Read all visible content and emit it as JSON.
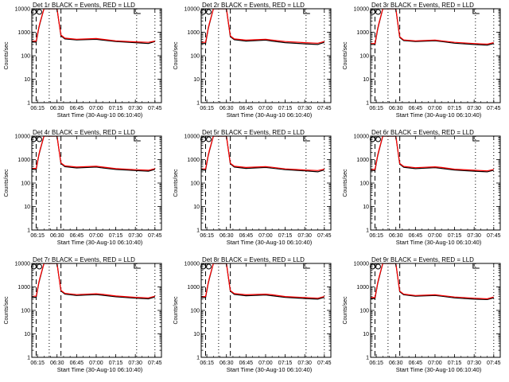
{
  "figure": {
    "x_tick_labels": [
      "06:15",
      "06:30",
      "06:45",
      "07:00",
      "07:15",
      "07:30",
      "07:45"
    ],
    "y_tick_labels": [
      "1",
      "10",
      "100",
      "1000",
      "10000"
    ],
    "colors": {
      "events": "#000000",
      "lld": "#ff0000"
    }
  },
  "chart_data": [
    {
      "type": "line",
      "title": "Det 1r BLACK = Events, RED = LLD",
      "xlabel": "Start Time (30-Aug-10 06:10:40)",
      "ylabel": "Counts/sec",
      "y_scale": "log",
      "ylim": [
        1,
        10000
      ],
      "x": [
        "06:10",
        "06:14",
        "06:16",
        "06:17",
        "06:20",
        "06:24",
        "06:28",
        "06:30",
        "06:33",
        "06:36",
        "06:45",
        "07:00",
        "07:05",
        "07:15",
        "07:30",
        "07:40",
        "07:45"
      ],
      "series": [
        {
          "name": "Events",
          "color": "#000000",
          "values": [
            380,
            380,
            1500,
            2500,
            10000,
            10000,
            10000,
            10000,
            700,
            520,
            470,
            500,
            460,
            400,
            360,
            330,
            400
          ]
        },
        {
          "name": "LLD",
          "color": "#ff0000",
          "values": [
            420,
            420,
            1600,
            2700,
            10000,
            10000,
            10000,
            10000,
            760,
            560,
            500,
            540,
            500,
            430,
            390,
            370,
            420
          ]
        }
      ],
      "vlines_dashed": [
        "06:14",
        "06:33"
      ],
      "vlines_dotted": [
        "06:24",
        "07:31",
        "07:45"
      ]
    },
    {
      "type": "line",
      "title": "Det 2r BLACK = Events, RED = LLD",
      "xlabel": "Start Time (30-Aug-10 06:10:40)",
      "ylabel": "Counts/sec",
      "y_scale": "log",
      "ylim": [
        1,
        10000
      ],
      "x": [
        "06:10",
        "06:14",
        "06:16",
        "06:17",
        "06:20",
        "06:24",
        "06:28",
        "06:30",
        "06:33",
        "06:36",
        "06:45",
        "07:00",
        "07:05",
        "07:15",
        "07:30",
        "07:40",
        "07:45"
      ],
      "series": [
        {
          "name": "Events",
          "color": "#000000",
          "values": [
            330,
            330,
            1400,
            2300,
            10000,
            10000,
            10000,
            10000,
            650,
            480,
            420,
            460,
            420,
            360,
            320,
            300,
            370
          ]
        },
        {
          "name": "LLD",
          "color": "#ff0000",
          "values": [
            370,
            370,
            1500,
            2500,
            10000,
            10000,
            10000,
            10000,
            700,
            520,
            460,
            500,
            460,
            400,
            360,
            340,
            400
          ]
        }
      ],
      "vlines_dashed": [
        "06:14",
        "06:33"
      ],
      "vlines_dotted": [
        "06:24",
        "07:31",
        "07:45"
      ]
    },
    {
      "type": "line",
      "title": "Det 3r BLACK = Events, RED = LLD",
      "xlabel": "Start Time (30-Aug-10 06:10:40)",
      "ylabel": "Counts/sec",
      "y_scale": "log",
      "ylim": [
        1,
        10000
      ],
      "x": [
        "06:10",
        "06:14",
        "06:16",
        "06:17",
        "06:20",
        "06:24",
        "06:28",
        "06:30",
        "06:33",
        "06:36",
        "06:45",
        "07:00",
        "07:05",
        "07:15",
        "07:30",
        "07:40",
        "07:45"
      ],
      "series": [
        {
          "name": "Events",
          "color": "#000000",
          "values": [
            300,
            300,
            1300,
            2200,
            10000,
            10000,
            10000,
            10000,
            600,
            440,
            400,
            430,
            400,
            340,
            300,
            280,
            330
          ]
        },
        {
          "name": "LLD",
          "color": "#ff0000",
          "values": [
            330,
            330,
            1400,
            2400,
            10000,
            10000,
            10000,
            10000,
            640,
            470,
            430,
            460,
            430,
            370,
            330,
            310,
            360
          ]
        }
      ],
      "vlines_dashed": [
        "06:14",
        "06:33"
      ],
      "vlines_dotted": [
        "06:24",
        "07:31",
        "07:45"
      ]
    },
    {
      "type": "line",
      "title": "Det 4r BLACK = Events, RED = LLD",
      "xlabel": "Start Time (30-Aug-10 06:10:40)",
      "ylabel": "Counts/sec",
      "y_scale": "log",
      "ylim": [
        1,
        10000
      ],
      "x": [
        "06:10",
        "06:14",
        "06:16",
        "06:17",
        "06:20",
        "06:24",
        "06:28",
        "06:30",
        "06:33",
        "06:36",
        "06:45",
        "07:00",
        "07:05",
        "07:15",
        "07:30",
        "07:40",
        "07:45"
      ],
      "series": [
        {
          "name": "Events",
          "color": "#000000",
          "values": [
            380,
            380,
            1500,
            2500,
            10000,
            10000,
            10000,
            10000,
            680,
            500,
            440,
            480,
            440,
            380,
            340,
            320,
            380
          ]
        },
        {
          "name": "LLD",
          "color": "#ff0000",
          "values": [
            420,
            420,
            1600,
            2700,
            10000,
            10000,
            10000,
            10000,
            720,
            540,
            480,
            520,
            480,
            410,
            370,
            350,
            410
          ]
        }
      ],
      "vlines_dashed": [
        "06:14",
        "06:33"
      ],
      "vlines_dotted": [
        "06:24",
        "07:31",
        "07:45"
      ]
    },
    {
      "type": "line",
      "title": "Det 5r BLACK = Events, RED = LLD",
      "xlabel": "Start Time (30-Aug-10 06:10:40)",
      "ylabel": "Counts/sec",
      "y_scale": "log",
      "ylim": [
        1,
        10000
      ],
      "x": [
        "06:10",
        "06:14",
        "06:16",
        "06:17",
        "06:20",
        "06:24",
        "06:28",
        "06:30",
        "06:33",
        "06:36",
        "06:45",
        "07:00",
        "07:05",
        "07:15",
        "07:30",
        "07:40",
        "07:45"
      ],
      "series": [
        {
          "name": "Events",
          "color": "#000000",
          "values": [
            360,
            360,
            1450,
            2400,
            10000,
            10000,
            10000,
            10000,
            660,
            480,
            420,
            460,
            430,
            370,
            330,
            300,
            360
          ]
        },
        {
          "name": "LLD",
          "color": "#ff0000",
          "values": [
            400,
            400,
            1550,
            2600,
            10000,
            10000,
            10000,
            10000,
            700,
            520,
            460,
            500,
            470,
            400,
            360,
            340,
            390
          ]
        }
      ],
      "vlines_dashed": [
        "06:14",
        "06:33"
      ],
      "vlines_dotted": [
        "06:24",
        "07:31",
        "07:45"
      ]
    },
    {
      "type": "line",
      "title": "Det 6r BLACK = Events, RED = LLD",
      "xlabel": "Start Time (30-Aug-10 06:10:40)",
      "ylabel": "Counts/sec",
      "y_scale": "log",
      "ylim": [
        1,
        10000
      ],
      "x": [
        "06:10",
        "06:14",
        "06:16",
        "06:17",
        "06:20",
        "06:24",
        "06:28",
        "06:30",
        "06:33",
        "06:36",
        "06:45",
        "07:00",
        "07:05",
        "07:15",
        "07:30",
        "07:40",
        "07:45"
      ],
      "series": [
        {
          "name": "Events",
          "color": "#000000",
          "values": [
            340,
            340,
            1400,
            2300,
            10000,
            10000,
            10000,
            10000,
            640,
            470,
            410,
            450,
            420,
            360,
            320,
            300,
            350
          ]
        },
        {
          "name": "LLD",
          "color": "#ff0000",
          "values": [
            380,
            380,
            1500,
            2500,
            10000,
            10000,
            10000,
            10000,
            680,
            510,
            450,
            490,
            460,
            390,
            350,
            330,
            380
          ]
        }
      ],
      "vlines_dashed": [
        "06:14",
        "06:33"
      ],
      "vlines_dotted": [
        "06:24",
        "07:31",
        "07:45"
      ]
    },
    {
      "type": "line",
      "title": "Det 7r BLACK = Events, RED = LLD",
      "xlabel": "Start Time (30-Aug-10 06:10:40)",
      "ylabel": "Counts/sec",
      "y_scale": "log",
      "ylim": [
        1,
        10000
      ],
      "x": [
        "06:10",
        "06:14",
        "06:16",
        "06:17",
        "06:20",
        "06:24",
        "06:28",
        "06:30",
        "06:33",
        "06:36",
        "06:45",
        "07:00",
        "07:05",
        "07:15",
        "07:30",
        "07:40",
        "07:45"
      ],
      "series": [
        {
          "name": "Events",
          "color": "#000000",
          "values": [
            360,
            360,
            1450,
            2400,
            10000,
            10000,
            10000,
            10000,
            670,
            490,
            430,
            470,
            440,
            380,
            330,
            310,
            370
          ]
        },
        {
          "name": "LLD",
          "color": "#ff0000",
          "values": [
            400,
            400,
            1550,
            2600,
            10000,
            10000,
            10000,
            10000,
            710,
            530,
            470,
            510,
            480,
            410,
            360,
            340,
            400
          ]
        }
      ],
      "vlines_dashed": [
        "06:14",
        "06:33"
      ],
      "vlines_dotted": [
        "06:24",
        "07:31",
        "07:45"
      ]
    },
    {
      "type": "line",
      "title": "Det 8r BLACK = Events, RED = LLD",
      "xlabel": "Start Time (30-Aug-10 06:10:40)",
      "ylabel": "Counts/sec",
      "y_scale": "log",
      "ylim": [
        1,
        10000
      ],
      "x": [
        "06:10",
        "06:14",
        "06:16",
        "06:17",
        "06:20",
        "06:24",
        "06:28",
        "06:30",
        "06:33",
        "06:36",
        "06:45",
        "07:00",
        "07:05",
        "07:15",
        "07:30",
        "07:40",
        "07:45"
      ],
      "series": [
        {
          "name": "Events",
          "color": "#000000",
          "values": [
            350,
            350,
            1400,
            2350,
            10000,
            10000,
            10000,
            10000,
            660,
            480,
            420,
            450,
            420,
            360,
            320,
            300,
            360
          ]
        },
        {
          "name": "LLD",
          "color": "#ff0000",
          "values": [
            390,
            390,
            1500,
            2550,
            10000,
            10000,
            10000,
            10000,
            700,
            520,
            460,
            490,
            460,
            390,
            350,
            330,
            390
          ]
        }
      ],
      "vlines_dashed": [
        "06:14",
        "06:33"
      ],
      "vlines_dotted": [
        "06:24",
        "07:31",
        "07:45"
      ]
    },
    {
      "type": "line",
      "title": "Det 9r BLACK = Events, RED = LLD",
      "xlabel": "Start Time (30-Aug-10 06:10:40)",
      "ylabel": "Counts/sec",
      "y_scale": "log",
      "ylim": [
        1,
        10000
      ],
      "x": [
        "06:10",
        "06:14",
        "06:16",
        "06:17",
        "06:20",
        "06:24",
        "06:28",
        "06:30",
        "06:33",
        "06:36",
        "06:45",
        "07:00",
        "07:05",
        "07:15",
        "07:30",
        "07:40",
        "07:45"
      ],
      "series": [
        {
          "name": "Events",
          "color": "#000000",
          "values": [
            320,
            320,
            1350,
            2250,
            10000,
            10000,
            10000,
            10000,
            620,
            460,
            400,
            430,
            400,
            340,
            300,
            290,
            340
          ]
        },
        {
          "name": "LLD",
          "color": "#ff0000",
          "values": [
            350,
            350,
            1450,
            2450,
            10000,
            10000,
            10000,
            10000,
            660,
            490,
            430,
            460,
            430,
            370,
            330,
            310,
            370
          ]
        }
      ],
      "vlines_dashed": [
        "06:14",
        "06:33"
      ],
      "vlines_dotted": [
        "06:24",
        "07:31",
        "07:45"
      ]
    }
  ]
}
